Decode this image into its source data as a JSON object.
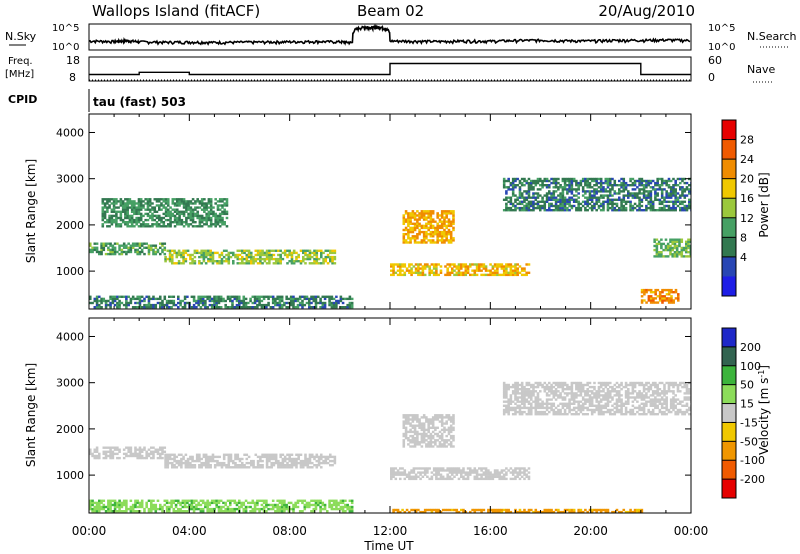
{
  "header": {
    "station": "Wallops Island (fitACF)",
    "beam": "Beam 02",
    "date": "20/Aug/2010"
  },
  "strip": {
    "nsky_label": "N.Sky",
    "nsky_top": "10^5",
    "nsky_bottom": "10^0",
    "nsky_right_top": "10^5",
    "nsky_right_bottom": "10^0",
    "nsearch_label": "N.Search",
    "freq_label": "Freq.",
    "freq_unit": "[MHz]",
    "freq_top": "18",
    "freq_bottom": "8",
    "nave_top": "60",
    "nave_bottom": "0",
    "nave_label": "Nave",
    "cpid_label": "CPID",
    "cpid_value": "tau (fast) 503"
  },
  "power_colorbar": {
    "label": "Power [dB]",
    "ticks": [
      "28",
      "24",
      "20",
      "16",
      "12",
      "8",
      "4"
    ],
    "colors": [
      "#e60000",
      "#f05a00",
      "#f08c00",
      "#f0c800",
      "#9bc83c",
      "#46a064",
      "#327850",
      "#2846b4",
      "#1e1ee6"
    ]
  },
  "velocity_colorbar": {
    "label_main": "Velocity [m s",
    "label_sup": "-1",
    "label_end": "]",
    "ticks": [
      "200",
      "100",
      "50",
      "15",
      "-15",
      "-50",
      "-100",
      "-200"
    ],
    "colors": [
      "#1e28c8",
      "#326450",
      "#3cb43c",
      "#8cdc5a",
      "#c8c8c8",
      "#f0c800",
      "#f09600",
      "#f05a00",
      "#e60000"
    ]
  },
  "axes": {
    "ylabel": "Slant Range [km]",
    "yticks": [
      "1000",
      "2000",
      "3000",
      "4000"
    ],
    "xticks": [
      "00:00",
      "04:00",
      "08:00",
      "12:00",
      "16:00",
      "20:00",
      "00:00"
    ],
    "xlabel": "Time UT"
  },
  "chart_data": [
    {
      "type": "line",
      "name": "N.Sky / N.Search",
      "x": [
        0,
        1,
        1.5,
        2,
        3,
        4,
        5,
        6,
        7,
        8,
        9,
        10,
        10.5,
        11,
        11.3,
        11.6,
        12,
        13,
        14,
        15,
        16,
        17,
        18,
        19,
        20,
        21,
        22,
        23,
        24
      ],
      "values": [
        40,
        30,
        45,
        25,
        20,
        22,
        18,
        20,
        22,
        25,
        30,
        25,
        15,
        80000,
        60000,
        70000,
        40,
        35,
        30,
        40,
        35,
        50,
        60,
        45,
        40,
        55,
        60,
        70,
        50
      ],
      "ylim": [
        1,
        100000
      ],
      "scale": "log"
    },
    {
      "type": "line",
      "name": "Freq",
      "x": [
        0,
        2,
        2,
        4,
        4,
        12,
        12,
        22,
        22,
        24
      ],
      "values": [
        10.5,
        10.5,
        11.5,
        11.5,
        10.5,
        10.5,
        15.5,
        15.5,
        10.5,
        10.5
      ],
      "ylim": [
        8,
        18
      ]
    },
    {
      "type": "line",
      "name": "Nave",
      "x": [
        0,
        24
      ],
      "values": [
        0,
        0
      ],
      "ylim": [
        0,
        60
      ]
    },
    {
      "type": "heatmap",
      "name": "Power [dB]",
      "xlabel": "Time UT",
      "ylabel": "Slant Range [km]",
      "xlim": [
        0,
        24
      ],
      "ylim": [
        180,
        4400
      ],
      "features": [
        {
          "t0": 0,
          "t1": 10.5,
          "r0": 200,
          "r1": 450,
          "p": 6
        },
        {
          "t0": 0,
          "t1": 3,
          "r0": 1350,
          "r1": 1600,
          "p": 10
        },
        {
          "t0": 0.5,
          "t1": 5.5,
          "r0": 1950,
          "r1": 2550,
          "p": 8
        },
        {
          "t0": 3,
          "t1": 9.8,
          "r0": 1150,
          "r1": 1450,
          "p": 14
        },
        {
          "t0": 12,
          "t1": 17.5,
          "r0": 900,
          "r1": 1150,
          "p": 19
        },
        {
          "t0": 12.5,
          "t1": 14.5,
          "r0": 1600,
          "r1": 2300,
          "p": 20
        },
        {
          "t0": 16.5,
          "t1": 24,
          "r0": 2300,
          "r1": 3000,
          "p": 6
        },
        {
          "t0": 22,
          "t1": 23.5,
          "r0": 300,
          "r1": 600,
          "p": 22
        },
        {
          "t0": 22.5,
          "t1": 24,
          "r0": 1300,
          "r1": 1700,
          "p": 12
        }
      ]
    },
    {
      "type": "heatmap",
      "name": "Velocity [m s-1]",
      "xlabel": "Time UT",
      "ylabel": "Slant Range [km]",
      "xlim": [
        0,
        24
      ],
      "ylim": [
        180,
        4400
      ],
      "features": [
        {
          "t0": 0,
          "t1": 10.5,
          "r0": 200,
          "r1": 450,
          "v": 40
        },
        {
          "t0": 0,
          "t1": 3,
          "r0": 1350,
          "r1": 1600,
          "v": 0
        },
        {
          "t0": 3,
          "t1": 9.8,
          "r0": 1150,
          "r1": 1450,
          "v": 0
        },
        {
          "t0": 12,
          "t1": 17.5,
          "r0": 900,
          "r1": 1150,
          "v": 0
        },
        {
          "t0": 12.5,
          "t1": 14.5,
          "r0": 1600,
          "r1": 2300,
          "v": 0
        },
        {
          "t0": 16.5,
          "t1": 24,
          "r0": 2300,
          "r1": 3000,
          "v": 0
        },
        {
          "t0": 12,
          "t1": 22,
          "r0": 180,
          "r1": 260,
          "v": -60
        }
      ]
    }
  ]
}
